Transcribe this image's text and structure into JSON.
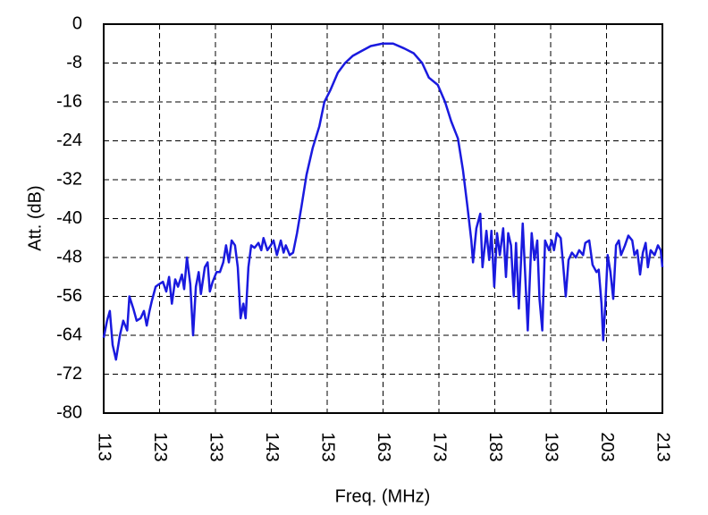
{
  "chart_data": {
    "type": "line",
    "xlabel": "Freq. (MHz)",
    "ylabel": "Att. (dB)",
    "x": [
      113,
      113.6,
      114.1,
      114.6,
      115.2,
      115.9,
      116.5,
      117.2,
      117.6,
      118.3,
      118.9,
      119.6,
      120.2,
      120.7,
      121.2,
      121.6,
      122.3,
      122.9,
      123.6,
      124.2,
      124.7,
      125.2,
      125.8,
      126.3,
      127,
      127.4,
      127.9,
      128.5,
      129,
      129.5,
      130,
      130.4,
      131.1,
      131.6,
      132,
      132.5,
      133.2,
      133.8,
      134.4,
      134.9,
      135.4,
      135.9,
      136.5,
      137,
      137.5,
      138,
      138.4,
      138.9,
      139.4,
      140,
      140.7,
      141.2,
      141.6,
      142.3,
      142.9,
      143.4,
      144,
      144.7,
      145.2,
      145.6,
      146.3,
      146.9,
      147.6,
      148.4,
      149.3,
      150.4,
      151.6,
      152.5,
      153.6,
      154.9,
      156.2,
      157.6,
      159.2,
      160.8,
      162.9,
      164.8,
      166.8,
      168.5,
      170,
      171.2,
      172.8,
      174.1,
      175.2,
      176.4,
      177.3,
      178.1,
      178.8,
      179.1,
      179.7,
      180.4,
      180.8,
      181.5,
      182,
      182.4,
      182.9,
      183.4,
      183.9,
      184.5,
      185,
      185.4,
      185.9,
      186.4,
      186.8,
      187.3,
      188,
      188.4,
      188.9,
      189.6,
      190.1,
      190.6,
      191,
      191.5,
      192,
      192.7,
      193.2,
      193.6,
      194.1,
      194.8,
      195.2,
      195.7,
      196.2,
      196.8,
      197.5,
      198.1,
      198.8,
      199.2,
      199.9,
      200.5,
      201.2,
      201.6,
      202.1,
      202.4,
      202.8,
      203.2,
      203.7,
      204.2,
      204.7,
      205.2,
      205.6,
      206.3,
      206.9,
      207.6,
      208,
      208.5,
      209,
      209.5,
      210,
      210.4,
      210.9,
      211.6,
      212.2,
      212.7,
      213
    ],
    "series": [
      {
        "color": "#1a1adf",
        "values": [
          -64.5,
          -61,
          -59,
          -66,
          -69,
          -64,
          -61,
          -63,
          -56,
          -58.5,
          -61,
          -60.5,
          -59,
          -62,
          -59,
          -57,
          -54,
          -53.5,
          -53,
          -55,
          -52,
          -57.5,
          -52.5,
          -54,
          -51.5,
          -54.5,
          -48,
          -53.5,
          -64,
          -54,
          -51,
          -55.5,
          -50,
          -49,
          -55,
          -53,
          -51,
          -51,
          -49,
          -45.5,
          -49,
          -44.5,
          -45.5,
          -50,
          -60.5,
          -57.5,
          -60.5,
          -50,
          -45.5,
          -46,
          -45,
          -46.5,
          -44,
          -46.5,
          -45.5,
          -44.5,
          -47.5,
          -44.5,
          -47,
          -45.5,
          -47.5,
          -47,
          -43,
          -37.5,
          -31,
          -25.5,
          -21,
          -16,
          -13.5,
          -10,
          -8,
          -6.5,
          -5.5,
          -4.5,
          -4,
          -4,
          -5,
          -6,
          -8,
          -11,
          -12.5,
          -16,
          -20,
          -23.5,
          -30,
          -37.5,
          -44.5,
          -49,
          -42,
          -39,
          -50,
          -42.5,
          -48.5,
          -42.5,
          -54,
          -43,
          -47.5,
          -42,
          -52,
          -43,
          -45.5,
          -56,
          -45,
          -58.5,
          -41,
          -50.5,
          -63,
          -43,
          -48.5,
          -44.5,
          -56.5,
          -63,
          -44.5,
          -46.5,
          -44.5,
          -46.5,
          -43,
          -44,
          -49,
          -56,
          -48.5,
          -47,
          -48,
          -46.5,
          -47.5,
          -45,
          -44.5,
          -49.5,
          -51,
          -50.5,
          -57.5,
          -65,
          -57.5,
          -47.5,
          -51,
          -56.5,
          -45.5,
          -44.5,
          -47.5,
          -45.5,
          -43.5,
          -44.5,
          -47.5,
          -46.5,
          -51.5,
          -47,
          -45,
          -50,
          -46.5,
          -47.5,
          -45.5,
          -46.5,
          -50
        ]
      }
    ],
    "xlim": [
      113,
      213
    ],
    "xticks": [
      113,
      123,
      133,
      143,
      153,
      163,
      173,
      183,
      193,
      203,
      213
    ],
    "ylim": [
      -80,
      0
    ],
    "yticks": [
      0,
      -8,
      -16,
      -24,
      -32,
      -40,
      -48,
      -56,
      -64,
      -72,
      -80
    ],
    "grid": true
  }
}
